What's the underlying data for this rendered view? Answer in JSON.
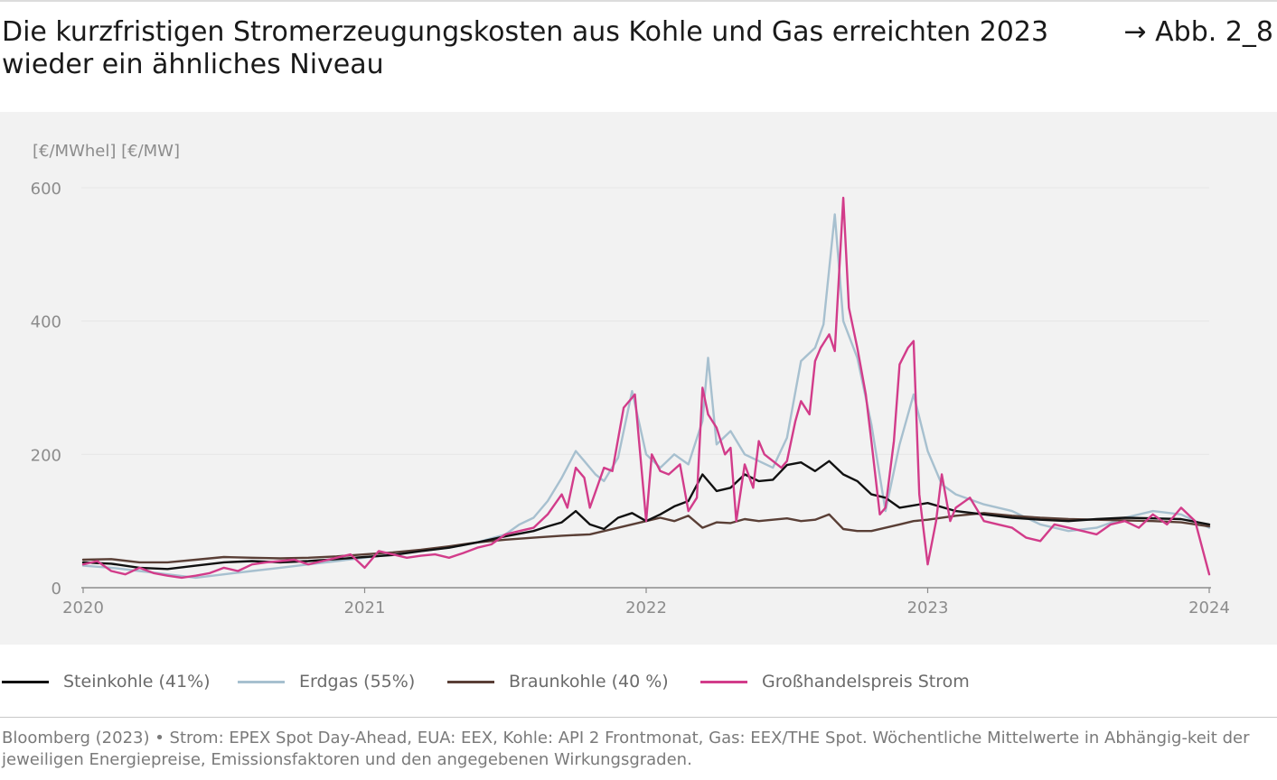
{
  "header": {
    "title": "Die kurzfristigen Stromerzeugungskosten aus Kohle und Gas erreichten 2023 wieder ein ähnliches Niveau",
    "figure_ref": "→ Abb. 2_8"
  },
  "source": "Bloomberg (2023) • Strom: EPEX Spot Day-Ahead, EUA: EEX, Kohle: API 2 Frontmonat, Gas: EEX/THE Spot. Wöchentliche Mittelwerte in Abhängig-keit der jeweiligen Energiepreise, Emissionsfaktoren und den angegebenen Wirkungsgraden.",
  "colors": {
    "background": "#f2f2f2",
    "grid": "#e6e6e6",
    "axis": "#8c8c8c",
    "tick_text": "#8c8c8c"
  },
  "chart_data": {
    "type": "line",
    "ylabel": "[€/MWhel] [€/MW]",
    "xlabel": "",
    "title": "",
    "ylim": [
      0,
      600
    ],
    "xlim": [
      2020,
      2024
    ],
    "yticks": [
      0,
      200,
      400,
      600
    ],
    "xticks": [
      2020,
      2021,
      2022,
      2023,
      2024
    ],
    "xtick_labels": [
      "2020",
      "2021",
      "2022",
      "2023",
      "2024"
    ],
    "grid": true,
    "legend_position": "bottom",
    "series": [
      {
        "name": "Steinkohle (41%)",
        "color": "#111111",
        "x": [
          2020.0,
          2020.1,
          2020.2,
          2020.3,
          2020.4,
          2020.5,
          2020.6,
          2020.7,
          2020.8,
          2020.9,
          2021.0,
          2021.1,
          2021.2,
          2021.3,
          2021.4,
          2021.5,
          2021.6,
          2021.65,
          2021.7,
          2021.75,
          2021.8,
          2021.85,
          2021.9,
          2021.95,
          2022.0,
          2022.05,
          2022.1,
          2022.15,
          2022.2,
          2022.25,
          2022.3,
          2022.35,
          2022.4,
          2022.45,
          2022.5,
          2022.55,
          2022.6,
          2022.65,
          2022.7,
          2022.75,
          2022.8,
          2022.85,
          2022.9,
          2023.0,
          2023.1,
          2023.2,
          2023.3,
          2023.4,
          2023.5,
          2023.6,
          2023.7,
          2023.8,
          2023.9,
          2024.0
        ],
        "y": [
          38,
          36,
          30,
          28,
          33,
          38,
          40,
          38,
          40,
          43,
          46,
          49,
          55,
          60,
          68,
          77,
          85,
          92,
          98,
          115,
          95,
          88,
          105,
          112,
          100,
          110,
          122,
          130,
          170,
          145,
          150,
          170,
          160,
          162,
          184,
          188,
          175,
          190,
          170,
          160,
          140,
          135,
          120,
          127,
          115,
          110,
          105,
          102,
          100,
          103,
          105,
          104,
          103,
          95
        ]
      },
      {
        "name": "Erdgas (55%)",
        "color": "#a7c0cf",
        "x": [
          2020.0,
          2020.1,
          2020.2,
          2020.3,
          2020.4,
          2020.5,
          2020.6,
          2020.7,
          2020.8,
          2020.9,
          2021.0,
          2021.1,
          2021.2,
          2021.3,
          2021.4,
          2021.5,
          2021.55,
          2021.6,
          2021.65,
          2021.7,
          2021.75,
          2021.78,
          2021.82,
          2021.85,
          2021.9,
          2021.95,
          2022.0,
          2022.05,
          2022.1,
          2022.15,
          2022.2,
          2022.22,
          2022.25,
          2022.3,
          2022.35,
          2022.4,
          2022.45,
          2022.5,
          2022.55,
          2022.6,
          2022.63,
          2022.67,
          2022.7,
          2022.75,
          2022.8,
          2022.85,
          2022.9,
          2022.95,
          2023.0,
          2023.05,
          2023.1,
          2023.2,
          2023.3,
          2023.4,
          2023.5,
          2023.6,
          2023.7,
          2023.8,
          2023.9,
          2024.0
        ],
        "y": [
          33,
          30,
          25,
          20,
          15,
          20,
          25,
          30,
          35,
          40,
          45,
          50,
          55,
          60,
          68,
          80,
          95,
          105,
          130,
          165,
          205,
          190,
          170,
          160,
          195,
          295,
          200,
          180,
          200,
          185,
          250,
          345,
          215,
          235,
          200,
          190,
          180,
          225,
          340,
          360,
          395,
          560,
          400,
          345,
          245,
          115,
          215,
          290,
          205,
          155,
          140,
          125,
          115,
          95,
          85,
          90,
          105,
          115,
          110,
          90
        ]
      },
      {
        "name": "Braunkohle (40 %)",
        "color": "#5a3f36",
        "x": [
          2020.0,
          2020.1,
          2020.2,
          2020.3,
          2020.4,
          2020.5,
          2020.6,
          2020.7,
          2020.8,
          2020.9,
          2021.0,
          2021.1,
          2021.2,
          2021.3,
          2021.4,
          2021.5,
          2021.6,
          2021.7,
          2021.8,
          2021.9,
          2022.0,
          2022.05,
          2022.1,
          2022.15,
          2022.2,
          2022.25,
          2022.3,
          2022.35,
          2022.4,
          2022.45,
          2022.5,
          2022.55,
          2022.6,
          2022.65,
          2022.7,
          2022.75,
          2022.8,
          2022.85,
          2022.9,
          2022.95,
          2023.0,
          2023.1,
          2023.2,
          2023.3,
          2023.4,
          2023.5,
          2023.6,
          2023.7,
          2023.8,
          2023.9,
          2024.0
        ],
        "y": [
          42,
          43,
          38,
          38,
          42,
          46,
          45,
          44,
          45,
          47,
          50,
          53,
          57,
          62,
          68,
          72,
          75,
          78,
          80,
          90,
          100,
          105,
          100,
          108,
          90,
          98,
          97,
          103,
          100,
          102,
          104,
          100,
          102,
          110,
          88,
          85,
          85,
          90,
          95,
          100,
          102,
          108,
          112,
          108,
          105,
          103,
          102,
          101,
          100,
          98,
          92
        ]
      },
      {
        "name": "Großhandelspreis Strom",
        "color": "#d23c8a",
        "x": [
          2020.0,
          2020.05,
          2020.1,
          2020.15,
          2020.2,
          2020.25,
          2020.3,
          2020.35,
          2020.4,
          2020.45,
          2020.5,
          2020.55,
          2020.6,
          2020.65,
          2020.7,
          2020.75,
          2020.8,
          2020.85,
          2020.9,
          2020.95,
          2021.0,
          2021.05,
          2021.1,
          2021.15,
          2021.2,
          2021.25,
          2021.3,
          2021.35,
          2021.4,
          2021.45,
          2021.5,
          2021.55,
          2021.6,
          2021.65,
          2021.7,
          2021.72,
          2021.75,
          2021.78,
          2021.8,
          2021.85,
          2021.88,
          2021.92,
          2021.96,
          2022.0,
          2022.02,
          2022.05,
          2022.08,
          2022.12,
          2022.15,
          2022.18,
          2022.2,
          2022.22,
          2022.25,
          2022.28,
          2022.3,
          2022.32,
          2022.35,
          2022.38,
          2022.4,
          2022.42,
          2022.45,
          2022.48,
          2022.5,
          2022.53,
          2022.55,
          2022.58,
          2022.6,
          2022.62,
          2022.65,
          2022.67,
          2022.7,
          2022.72,
          2022.75,
          2022.78,
          2022.8,
          2022.83,
          2022.85,
          2022.88,
          2022.9,
          2022.93,
          2022.95,
          2022.97,
          2023.0,
          2023.03,
          2023.05,
          2023.08,
          2023.1,
          2023.15,
          2023.2,
          2023.25,
          2023.3,
          2023.35,
          2023.4,
          2023.45,
          2023.5,
          2023.55,
          2023.6,
          2023.65,
          2023.7,
          2023.75,
          2023.8,
          2023.85,
          2023.9,
          2023.95,
          2024.0
        ],
        "y": [
          35,
          40,
          25,
          20,
          30,
          22,
          18,
          15,
          18,
          22,
          30,
          25,
          35,
          38,
          40,
          42,
          35,
          40,
          45,
          50,
          30,
          55,
          50,
          45,
          48,
          50,
          45,
          52,
          60,
          65,
          80,
          85,
          90,
          110,
          140,
          120,
          180,
          165,
          120,
          180,
          175,
          270,
          290,
          100,
          200,
          175,
          170,
          185,
          115,
          135,
          300,
          260,
          240,
          200,
          210,
          100,
          185,
          150,
          220,
          200,
          190,
          180,
          190,
          250,
          280,
          260,
          340,
          360,
          380,
          355,
          585,
          420,
          360,
          290,
          220,
          110,
          120,
          220,
          335,
          360,
          370,
          140,
          35,
          100,
          170,
          100,
          120,
          135,
          100,
          95,
          90,
          75,
          70,
          95,
          90,
          85,
          80,
          95,
          100,
          90,
          110,
          95,
          120,
          100,
          20
        ]
      }
    ]
  }
}
